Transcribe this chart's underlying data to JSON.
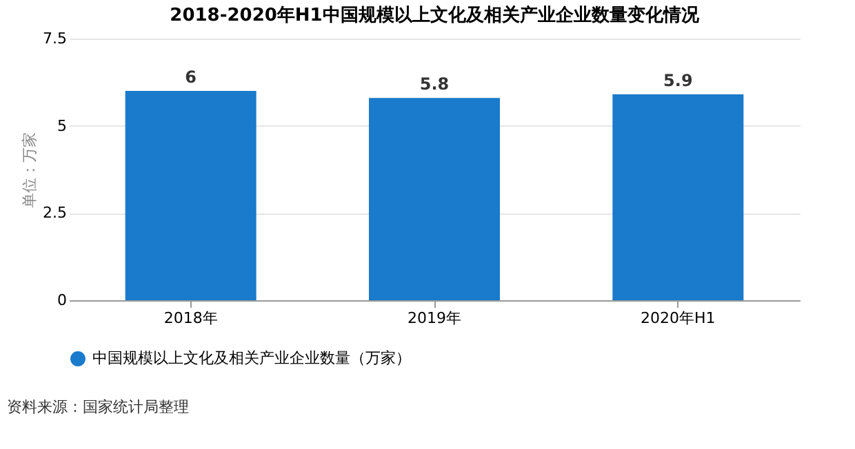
{
  "chart_data": {
    "type": "bar",
    "title": "2018-2020年H1中国规模以上文化及相关产业企业数量变化情况",
    "ylabel": "单位：万家",
    "categories": [
      "2018年",
      "2019年",
      "2020年H1"
    ],
    "series": [
      {
        "name": "中国规模以上文化及相关产业企业数量（万家）",
        "color": "#1a7acb",
        "values": [
          6,
          5.8,
          5.9
        ]
      }
    ],
    "ylim": [
      0,
      7.5
    ],
    "yticks": [
      0,
      2.5,
      5,
      7.5
    ],
    "grid": "y",
    "legend": "bottom",
    "marker": "circle",
    "data_labels": true,
    "annotations": [
      "资料来源：国家统计局整理"
    ]
  }
}
